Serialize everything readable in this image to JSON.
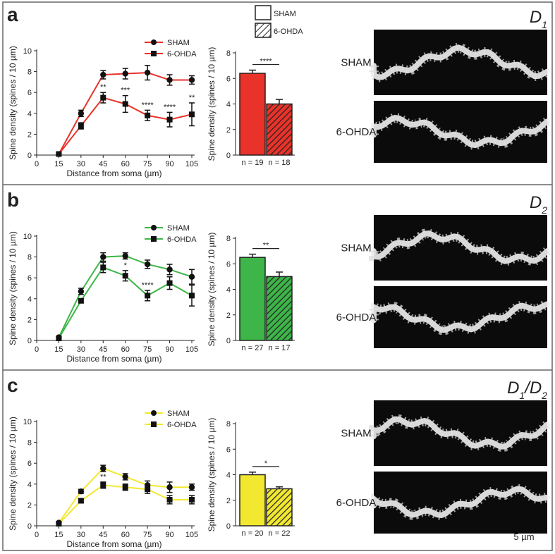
{
  "chart_data": [
    {
      "type": "line",
      "xlabel": "Distance from soma (µm)",
      "ylabel": "Spine density (spines / 10 µm)",
      "x": [
        15,
        30,
        45,
        60,
        75,
        90,
        105
      ],
      "xlim": [
        0,
        105
      ],
      "xticks": [
        0,
        15,
        30,
        45,
        60,
        75,
        90,
        105
      ],
      "ylim": [
        0,
        10
      ],
      "yticks": [
        0,
        2,
        4,
        6,
        8,
        10
      ],
      "series": [
        {
          "name": "SHAM",
          "color": "#e8322a",
          "marker": "circle",
          "values": [
            0.1,
            4.0,
            7.7,
            7.8,
            7.9,
            7.2,
            7.2
          ],
          "errors": [
            0.1,
            0.3,
            0.4,
            0.5,
            0.7,
            0.5,
            0.4
          ]
        },
        {
          "name": "6-OHDA",
          "color": "#e8322a",
          "marker": "square",
          "values": [
            0.1,
            2.8,
            5.5,
            4.9,
            3.8,
            3.4,
            3.9
          ],
          "errors": [
            0.1,
            0.3,
            0.5,
            0.8,
            0.5,
            0.7,
            1.1
          ]
        }
      ],
      "annotations": [
        {
          "x": 45,
          "text": "**"
        },
        {
          "x": 60,
          "text": "***"
        },
        {
          "x": 75,
          "text": "****"
        },
        {
          "x": 90,
          "text": "****"
        },
        {
          "x": 105,
          "text": "**"
        }
      ]
    },
    {
      "type": "bar",
      "ylabel": "Spine density (spines / 10 µm)",
      "ylim": [
        0,
        8
      ],
      "yticks": [
        0,
        2,
        4,
        6,
        8
      ],
      "color": "#e8322a",
      "categories": [
        "n = 19",
        "n = 18"
      ],
      "values": [
        6.4,
        4.0
      ],
      "errors": [
        0.25,
        0.35
      ],
      "hatch": [
        false,
        true
      ],
      "significance": "****",
      "legend": [
        "SHAM",
        "6-OHDA"
      ]
    },
    {
      "type": "line",
      "xlabel": "Distance from soma (µm)",
      "ylabel": "Spine density (spines / 10 µm)",
      "x": [
        15,
        30,
        45,
        60,
        75,
        90,
        105
      ],
      "xlim": [
        0,
        105
      ],
      "xticks": [
        0,
        15,
        30,
        45,
        60,
        75,
        90,
        105
      ],
      "ylim": [
        0,
        10
      ],
      "yticks": [
        0,
        2,
        4,
        6,
        8,
        10
      ],
      "series": [
        {
          "name": "SHAM",
          "color": "#3db548",
          "marker": "circle",
          "values": [
            0.3,
            4.7,
            8.0,
            8.1,
            7.3,
            6.8,
            6.1
          ],
          "errors": [
            0.1,
            0.3,
            0.4,
            0.3,
            0.4,
            0.5,
            0.7
          ]
        },
        {
          "name": "6-OHDA",
          "color": "#3db548",
          "marker": "square",
          "values": [
            0.2,
            3.8,
            7.0,
            6.2,
            4.3,
            5.5,
            4.3
          ],
          "errors": [
            0.1,
            0.2,
            0.5,
            0.5,
            0.5,
            0.6,
            1.0
          ]
        }
      ],
      "annotations": [
        {
          "x": 60,
          "text": "*"
        },
        {
          "x": 75,
          "text": "****"
        }
      ]
    },
    {
      "type": "bar",
      "ylabel": "Spine density (spines / 10 µm)",
      "ylim": [
        0,
        8
      ],
      "yticks": [
        0,
        2,
        4,
        6,
        8
      ],
      "color": "#3db548",
      "categories": [
        "n = 27",
        "n = 17"
      ],
      "values": [
        6.5,
        5.0
      ],
      "errors": [
        0.25,
        0.35
      ],
      "hatch": [
        false,
        true
      ],
      "significance": "**"
    },
    {
      "type": "line",
      "xlabel": "Distance from soma (µm)",
      "ylabel": "Spine density (spines / 10 µm)",
      "x": [
        15,
        30,
        45,
        60,
        75,
        90,
        105
      ],
      "xlim": [
        0,
        105
      ],
      "xticks": [
        0,
        15,
        30,
        45,
        60,
        75,
        90,
        105
      ],
      "ylim": [
        0,
        10
      ],
      "yticks": [
        0,
        2,
        4,
        6,
        8,
        10
      ],
      "series": [
        {
          "name": "SHAM",
          "color": "#f2e830",
          "marker": "circle",
          "values": [
            0.3,
            3.3,
            5.5,
            4.7,
            3.9,
            3.7,
            3.7
          ],
          "errors": [
            0.1,
            0.2,
            0.3,
            0.3,
            0.4,
            0.5,
            0.3
          ]
        },
        {
          "name": "6-OHDA",
          "color": "#f2e830",
          "marker": "square",
          "values": [
            0.2,
            2.4,
            3.9,
            3.7,
            3.5,
            2.5,
            2.5
          ],
          "errors": [
            0.1,
            0.15,
            0.3,
            0.3,
            0.4,
            0.4,
            0.4
          ]
        }
      ],
      "annotations": [
        {
          "x": 45,
          "text": "**"
        }
      ]
    },
    {
      "type": "bar",
      "ylabel": "Spine density (spines / 10 µm)",
      "ylim": [
        0,
        8
      ],
      "yticks": [
        0,
        2,
        4,
        6,
        8
      ],
      "color": "#f2e830",
      "categories": [
        "n = 20",
        "n = 22"
      ],
      "values": [
        4.0,
        2.9
      ],
      "errors": [
        0.2,
        0.15
      ],
      "hatch": [
        false,
        true
      ],
      "significance": "*"
    }
  ],
  "panels": [
    {
      "letter": "a",
      "cell_type": [
        {
          "text": "D"
        },
        {
          "text": "1",
          "sub": true
        }
      ],
      "image_labels": [
        "SHAM",
        "6-OHDA"
      ]
    },
    {
      "letter": "b",
      "cell_type": [
        {
          "text": "D"
        },
        {
          "text": "2",
          "sub": true
        }
      ],
      "image_labels": [
        "SHAM",
        "6-OHDA"
      ]
    },
    {
      "letter": "c",
      "cell_type": [
        {
          "text": "D"
        },
        {
          "text": "1",
          "sub": true
        },
        {
          "text": "/D"
        },
        {
          "text": "2",
          "sub": true
        }
      ],
      "image_labels": [
        "SHAM",
        "6-OHDA"
      ]
    }
  ],
  "scale_bar": "5 µm"
}
